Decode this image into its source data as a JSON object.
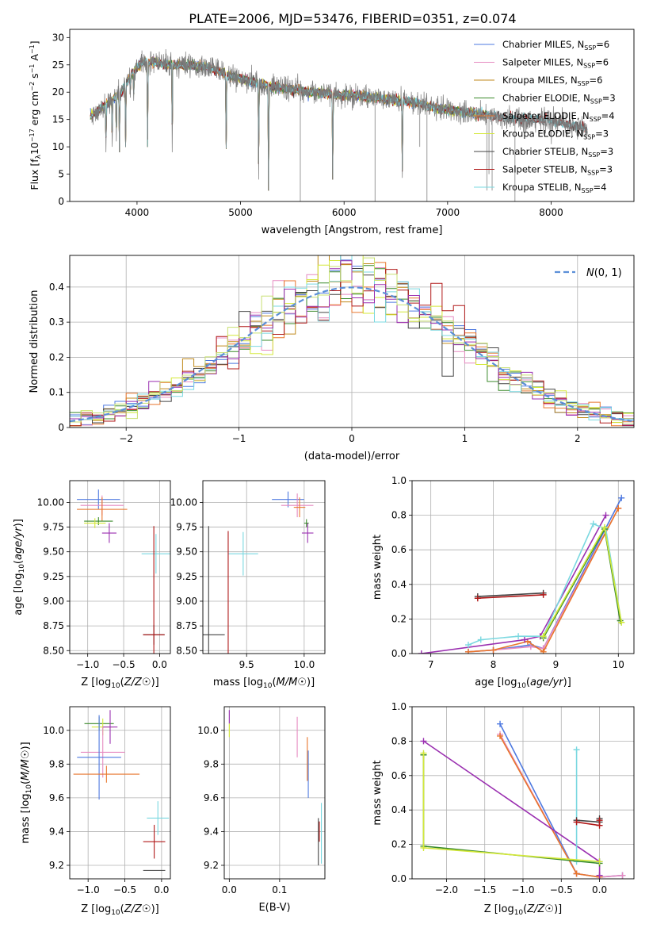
{
  "figure": {
    "title": "PLATE=2006, MJD=53476, FIBERID=0351, z=0.074"
  },
  "colors": {
    "chab_miles": "#4e79e0",
    "salp_miles": "#e68ac0",
    "krou_miles": "#c08a1c",
    "chab_elodie": "#3a8a2a",
    "salp_elodie": "#e8762c",
    "krou_elodie": "#d4e838",
    "chab_stelib": "#444444",
    "salp_stelib": "#b01818",
    "krou_stelib": "#7ad8e0",
    "extra1": "#9a2fb0",
    "extra2": "#c8e070",
    "extra3": "#a01818",
    "normal": "#5b8fd8"
  },
  "chart_data": [
    {
      "id": "spectrum",
      "type": "line",
      "xlabel": "wavelength [Angstrom, rest frame]",
      "ylabel": "Flux [f_λ10^-17 erg cm^-2 s^-1 A^-1]",
      "xlim": [
        3350,
        8800
      ],
      "ylim": [
        0,
        31.5
      ],
      "xticks": [
        4000,
        5000,
        6000,
        7000,
        8000
      ],
      "yticks": [
        0,
        5,
        10,
        15,
        20,
        25,
        30
      ],
      "grid": false,
      "legend_position": "top-right",
      "legend": [
        {
          "text": "Chabrier MILES, N",
          "sub": "SSP",
          "tail": "=6",
          "color": "chab_miles"
        },
        {
          "text": "Salpeter MILES, N",
          "sub": "SSP",
          "tail": "=6",
          "color": "salp_miles"
        },
        {
          "text": "Kroupa MILES, N",
          "sub": "SSP",
          "tail": "=6",
          "color": "krou_miles"
        },
        {
          "text": "Chabrier ELODIE, N",
          "sub": "SSP",
          "tail": "=3",
          "color": "chab_elodie"
        },
        {
          "text": "Salpeter ELODIE, N",
          "sub": "SSP",
          "tail": "=4",
          "color": "salp_elodie"
        },
        {
          "text": "Kroupa ELODIE, N",
          "sub": "SSP",
          "tail": "=3",
          "color": "krou_elodie"
        },
        {
          "text": "Chabrier STELIB, N",
          "sub": "SSP",
          "tail": "=3",
          "color": "chab_stelib"
        },
        {
          "text": "Salpeter STELIB, N",
          "sub": "SSP",
          "tail": "=3",
          "color": "salp_stelib"
        },
        {
          "text": "Kroupa STELIB, N",
          "sub": "SSP",
          "tail": "=4",
          "color": "krou_stelib"
        }
      ],
      "continuum": [
        [
          3550,
          15.5
        ],
        [
          3650,
          17.0
        ],
        [
          3750,
          18.5
        ],
        [
          3850,
          20.0
        ],
        [
          3950,
          23.5
        ],
        [
          4050,
          25.5
        ],
        [
          4150,
          25.5
        ],
        [
          4300,
          25.0
        ],
        [
          4500,
          25.0
        ],
        [
          4700,
          24.5
        ],
        [
          4900,
          23.0
        ],
        [
          5100,
          22.0
        ],
        [
          5300,
          21.0
        ],
        [
          5500,
          20.5
        ],
        [
          5700,
          20.0
        ],
        [
          5900,
          19.5
        ],
        [
          6100,
          19.5
        ],
        [
          6300,
          19.0
        ],
        [
          6500,
          18.5
        ],
        [
          6700,
          18.0
        ],
        [
          6900,
          17.0
        ],
        [
          7100,
          16.5
        ],
        [
          7300,
          16.0
        ],
        [
          7500,
          15.5
        ],
        [
          7700,
          15.0
        ],
        [
          7900,
          15.0
        ],
        [
          8100,
          14.5
        ],
        [
          8300,
          13.5
        ],
        [
          8350,
          13.0
        ]
      ],
      "absorption": [
        [
          3700,
          9
        ],
        [
          3760,
          10
        ],
        [
          3800,
          11
        ],
        [
          3830,
          9
        ],
        [
          3890,
          10
        ],
        [
          3935,
          19
        ],
        [
          3968,
          18
        ],
        [
          4102,
          10
        ],
        [
          4340,
          9
        ],
        [
          4861,
          7
        ],
        [
          5175,
          4
        ],
        [
          5270,
          2
        ],
        [
          5890,
          4
        ],
        [
          6563,
          3
        ]
      ],
      "spikes": [
        [
          5577,
          0
        ],
        [
          6300,
          -1
        ],
        [
          6730,
          10
        ],
        [
          6800,
          0
        ],
        [
          7380,
          2
        ],
        [
          7400,
          5
        ],
        [
          7430,
          2
        ],
        [
          7650,
          0
        ]
      ]
    },
    {
      "id": "residuals",
      "type": "step-histogram",
      "xlabel": "(data-model)/error",
      "ylabel": "Normed distribution",
      "xlim": [
        -2.5,
        2.5
      ],
      "ylim": [
        0,
        0.49
      ],
      "xticks": [
        -2,
        -1,
        0,
        1,
        2
      ],
      "yticks": [
        0.0,
        0.1,
        0.2,
        0.3,
        0.4
      ],
      "grid": true,
      "legend_position": "top-right",
      "legend": [
        {
          "text": "N(0, 1)",
          "color": "normal"
        }
      ],
      "bins": 50,
      "series_colors": [
        "chab_miles",
        "salp_miles",
        "krou_miles",
        "chab_elodie",
        "salp_elodie",
        "krou_elodie",
        "chab_stelib",
        "salp_stelib",
        "krou_stelib",
        "extra1",
        "extra2"
      ]
    },
    {
      "id": "age_vs_Z",
      "type": "errorbar",
      "xlabel": "Z [log10(Z/Z☉)]",
      "ylabel": "age  [log10(age/yr)]",
      "xlim": [
        -1.25,
        0.15
      ],
      "ylim": [
        8.47,
        10.22
      ],
      "xticks": [
        -1.0,
        -0.5,
        0.0
      ],
      "xtick_labels": [
        "−1.0",
        "−0.5",
        "0.0"
      ],
      "yticks": [
        8.5,
        8.75,
        9.0,
        9.25,
        9.5,
        9.75,
        10.0
      ],
      "ytick_labels": [
        "8.50",
        "8.75",
        "9.00",
        "9.25",
        "9.50",
        "9.75",
        "10.00"
      ],
      "grid": true,
      "points": [
        {
          "x": -0.85,
          "xerr": 0.3,
          "y": 10.03,
          "yerr": 0.1,
          "color": "chab_miles"
        },
        {
          "x": -0.8,
          "xerr": 0.3,
          "y": 9.97,
          "yerr": 0.1,
          "color": "salp_miles"
        },
        {
          "x": -0.8,
          "xerr": 0.35,
          "y": 9.93,
          "yerr": 0.12,
          "color": "salp_elodie"
        },
        {
          "x": -0.85,
          "xerr": 0.2,
          "y": 9.81,
          "yerr": 0.04,
          "color": "chab_elodie"
        },
        {
          "x": -0.9,
          "xerr": 0.15,
          "y": 9.79,
          "yerr": 0.05,
          "color": "krou_elodie"
        },
        {
          "x": -0.7,
          "xerr": 0.1,
          "y": 9.69,
          "yerr": 0.1,
          "color": "extra1"
        },
        {
          "x": -0.05,
          "xerr": 0.2,
          "y": 9.48,
          "yerr": 0.2,
          "color": "krou_stelib"
        },
        {
          "x": -0.08,
          "xerr": 0.15,
          "y": 8.66,
          "yerr": 0.1,
          "color": "chab_stelib"
        },
        {
          "x": -0.08,
          "xerr": 0.15,
          "y": 8.66,
          "yerr": 1.1,
          "color": "salp_stelib"
        }
      ]
    },
    {
      "id": "age_vs_mass",
      "type": "errorbar",
      "xlabel": "mass [log10(M/M☉)]",
      "ylabel": "",
      "xlim": [
        9.12,
        10.18
      ],
      "ylim": [
        8.47,
        10.22
      ],
      "xticks": [
        9.5,
        10.0
      ],
      "xtick_labels": [
        "9.5",
        "10.0"
      ],
      "yticks": [
        8.5,
        8.75,
        9.0,
        9.25,
        9.5,
        9.75,
        10.0
      ],
      "ytick_labels": [
        "8.50",
        "8.75",
        "9.00",
        "9.25",
        "9.50",
        "9.75",
        "10.00"
      ],
      "grid": true,
      "points": [
        {
          "x": 9.86,
          "xerr": 0.14,
          "y": 10.03,
          "yerr": 0.08,
          "color": "chab_miles"
        },
        {
          "x": 9.94,
          "xerr": 0.14,
          "y": 9.97,
          "yerr": 0.12,
          "color": "salp_miles"
        },
        {
          "x": 9.96,
          "xerr": 0.05,
          "y": 9.95,
          "yerr": 0.1,
          "color": "salp_elodie"
        },
        {
          "x": 10.02,
          "xerr": 0.02,
          "y": 9.79,
          "yerr": 0.04,
          "color": "chab_elodie"
        },
        {
          "x": 10.03,
          "xerr": 0.05,
          "y": 9.69,
          "yerr": 0.1,
          "color": "extra1"
        },
        {
          "x": 9.47,
          "xerr": 0.13,
          "y": 9.48,
          "yerr": 0.22,
          "color": "krou_stelib"
        },
        {
          "x": 9.17,
          "xerr": 0.14,
          "y": 8.66,
          "yerr": 1.1,
          "color": "chab_stelib"
        },
        {
          "x": 9.34,
          "xerr": 0.0,
          "y": 8.66,
          "yerr": 1.05,
          "color": "salp_stelib"
        }
      ]
    },
    {
      "id": "massweight_vs_age",
      "type": "line",
      "xlabel": "age  [log10(age/yr)]",
      "ylabel": "mass weight",
      "xlim": [
        6.7,
        10.25
      ],
      "ylim": [
        0,
        1
      ],
      "xticks": [
        7,
        8,
        9,
        10
      ],
      "xtick_labels": [
        "7",
        "8",
        "9",
        "10"
      ],
      "yticks": [
        0,
        0.2,
        0.4,
        0.6,
        0.8,
        1.0
      ],
      "ytick_labels": [
        "0.0",
        "0.2",
        "0.4",
        "0.6",
        "0.8",
        "1.0"
      ],
      "grid": true,
      "series": [
        {
          "color": "chab_miles",
          "x": [
            7.6,
            8.0,
            8.6,
            8.8,
            10.05
          ],
          "y": [
            0.01,
            0.02,
            0.05,
            0.03,
            0.9
          ]
        },
        {
          "color": "salp_miles",
          "x": [
            7.6,
            8.0,
            8.6,
            8.8,
            10.0
          ],
          "y": [
            0.01,
            0.02,
            0.04,
            0.03,
            0.84
          ]
        },
        {
          "color": "salp_elodie",
          "x": [
            7.6,
            8.0,
            8.55,
            8.8,
            10.0
          ],
          "y": [
            0.01,
            0.02,
            0.07,
            0.01,
            0.84
          ]
        },
        {
          "color": "extra1",
          "x": [
            6.85,
            8.5,
            8.75,
            9.8
          ],
          "y": [
            0.0,
            0.08,
            0.1,
            0.8
          ]
        },
        {
          "color": "krou_stelib",
          "x": [
            7.6,
            7.8,
            8.4,
            8.8,
            9.6,
            9.8,
            10.05
          ],
          "y": [
            0.05,
            0.08,
            0.1,
            0.1,
            0.75,
            0.72,
            0.18
          ]
        },
        {
          "color": "chab_elodie",
          "x": [
            8.8,
            9.78,
            10.03
          ],
          "y": [
            0.09,
            0.72,
            0.19
          ]
        },
        {
          "color": "krou_elodie",
          "x": [
            8.8,
            9.78,
            10.05
          ],
          "y": [
            0.1,
            0.73,
            0.18
          ]
        },
        {
          "color": "chab_stelib",
          "x": [
            7.75,
            8.8
          ],
          "y": [
            0.33,
            0.35
          ]
        },
        {
          "color": "salp_stelib",
          "x": [
            7.75,
            8.8
          ],
          "y": [
            0.32,
            0.34
          ]
        }
      ]
    },
    {
      "id": "mass_vs_Z",
      "type": "errorbar",
      "xlabel": "Z [log10(Z/Z☉)]",
      "ylabel": "mass [log10(M/M☉)]",
      "xlim": [
        -1.25,
        0.12
      ],
      "ylim": [
        9.12,
        10.14
      ],
      "xticks": [
        -1.0,
        -0.5,
        0.0
      ],
      "xtick_labels": [
        "−1.0",
        "−0.5",
        "0.0"
      ],
      "yticks": [
        9.2,
        9.4,
        9.6,
        9.8,
        10.0
      ],
      "ytick_labels": [
        "9.2",
        "9.4",
        "9.6",
        "9.8",
        "10.0"
      ],
      "grid": true,
      "points": [
        {
          "x": -0.85,
          "xerr": 0.2,
          "y": 10.04,
          "yerr": 0.04,
          "color": "chab_elodie"
        },
        {
          "x": -0.8,
          "xerr": 0.15,
          "y": 10.02,
          "yerr": 0.05,
          "color": "krou_elodie"
        },
        {
          "x": -0.7,
          "xerr": 0.1,
          "y": 10.02,
          "yerr": 0.1,
          "color": "extra1"
        },
        {
          "x": -0.8,
          "xerr": 0.3,
          "y": 9.87,
          "yerr": 0.15,
          "color": "salp_miles"
        },
        {
          "x": -0.85,
          "xerr": 0.3,
          "y": 9.84,
          "yerr": 0.25,
          "color": "chab_miles"
        },
        {
          "x": -0.75,
          "xerr": 0.45,
          "y": 9.74,
          "yerr": 0.05,
          "color": "salp_elodie"
        },
        {
          "x": -0.05,
          "xerr": 0.15,
          "y": 9.48,
          "yerr": 0.1,
          "color": "krou_stelib"
        },
        {
          "x": -0.1,
          "xerr": 0.15,
          "y": 9.34,
          "yerr": 0.1,
          "color": "salp_stelib"
        },
        {
          "x": -0.1,
          "xerr": 0.15,
          "y": 9.17,
          "yerr": 0.0,
          "color": "chab_stelib"
        }
      ]
    },
    {
      "id": "mass_vs_EBV",
      "type": "errorbar",
      "xlabel": "E(B-V)",
      "ylabel": "",
      "xlim": [
        -0.01,
        0.19
      ],
      "ylim": [
        9.12,
        10.14
      ],
      "xticks": [
        0.0,
        0.1
      ],
      "xtick_labels": [
        "0.0",
        "0.1"
      ],
      "yticks": [
        9.2,
        9.4,
        9.6,
        9.8,
        10.0
      ],
      "ytick_labels": [
        "9.2",
        "9.4",
        "9.6",
        "9.8",
        "10.0"
      ],
      "grid": true,
      "points": [
        {
          "x": 0.0,
          "xerr": 0,
          "y": 10.08,
          "yerr": 0.04,
          "color": "extra1"
        },
        {
          "x": 0.0,
          "xerr": 0,
          "y": 10.0,
          "yerr": 0.04,
          "color": "krou_elodie"
        },
        {
          "x": 0.135,
          "xerr": 0,
          "y": 9.96,
          "yerr": 0.12,
          "color": "salp_miles"
        },
        {
          "x": 0.155,
          "xerr": 0,
          "y": 9.83,
          "yerr": 0.13,
          "color": "salp_elodie"
        },
        {
          "x": 0.157,
          "xerr": 0,
          "y": 9.74,
          "yerr": 0.14,
          "color": "chab_miles"
        },
        {
          "x": 0.183,
          "xerr": 0,
          "y": 9.39,
          "yerr": 0.18,
          "color": "krou_stelib"
        },
        {
          "x": 0.177,
          "xerr": 0,
          "y": 9.34,
          "yerr": 0.14,
          "color": "chab_stelib"
        },
        {
          "x": 0.179,
          "xerr": 0,
          "y": 9.4,
          "yerr": 0.06,
          "color": "salp_stelib"
        }
      ]
    },
    {
      "id": "massweight_vs_Z",
      "type": "line",
      "xlabel": "Z [log10(Z/Z☉)]",
      "ylabel": "mass weight",
      "xlim": [
        -2.45,
        0.45
      ],
      "ylim": [
        0,
        1
      ],
      "xticks": [
        -2.0,
        -1.5,
        -1.0,
        -0.5,
        0.0
      ],
      "xtick_labels": [
        "−2.0",
        "−1.5",
        "−1.0",
        "−0.5",
        "0.0"
      ],
      "yticks": [
        0,
        0.2,
        0.4,
        0.6,
        0.8,
        1.0
      ],
      "ytick_labels": [
        "0.0",
        "0.2",
        "0.4",
        "0.6",
        "0.8",
        "1.0"
      ],
      "grid": true,
      "series": [
        {
          "color": "chab_miles",
          "x": [
            -1.3,
            -0.3,
            0.0,
            0.3
          ],
          "y": [
            0.9,
            0.03,
            0.01,
            0.02
          ]
        },
        {
          "color": "salp_miles",
          "x": [
            -1.3,
            -0.3,
            0.0,
            0.3
          ],
          "y": [
            0.84,
            0.03,
            0.01,
            0.02
          ]
        },
        {
          "color": "salp_elodie",
          "x": [
            -1.3,
            -0.3,
            0.0
          ],
          "y": [
            0.83,
            0.03,
            0.01
          ]
        },
        {
          "color": "extra1",
          "x": [
            -2.3,
            0.0,
            0.0
          ],
          "y": [
            0.8,
            0.1,
            0.02
          ]
        },
        {
          "color": "krou_stelib",
          "x": [
            -0.3,
            -0.3,
            0.0
          ],
          "y": [
            0.75,
            0.1,
            0.1
          ]
        },
        {
          "color": "chab_elodie",
          "x": [
            -2.3,
            -2.3,
            0.0
          ],
          "y": [
            0.72,
            0.19,
            0.09
          ]
        },
        {
          "color": "krou_elodie",
          "x": [
            -2.3,
            -2.3,
            0.0
          ],
          "y": [
            0.73,
            0.18,
            0.1
          ]
        },
        {
          "color": "chab_stelib",
          "x": [
            -0.3,
            0.0,
            0.0
          ],
          "y": [
            0.34,
            0.33,
            0.35
          ]
        },
        {
          "color": "salp_stelib",
          "x": [
            -0.3,
            0.0,
            0.0
          ],
          "y": [
            0.33,
            0.31,
            0.34
          ]
        }
      ]
    }
  ]
}
